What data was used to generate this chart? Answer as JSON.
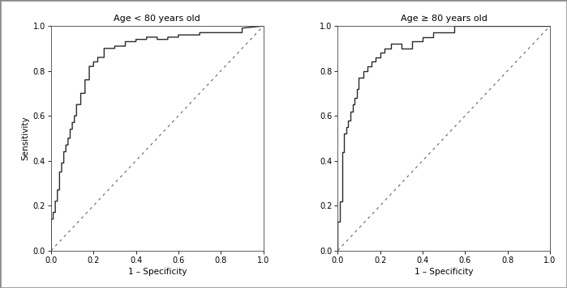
{
  "title1": "Age < 80 years old",
  "title2": "Age ≥ 80 years old",
  "xlabel": "1 – Specificity",
  "ylabel": "Sensitivity",
  "xlim": [
    0.0,
    1.0
  ],
  "ylim": [
    0.0,
    1.0
  ],
  "xticks": [
    0.0,
    0.2,
    0.4,
    0.6,
    0.8,
    1.0
  ],
  "yticks": [
    0.0,
    0.2,
    0.4,
    0.6,
    0.8,
    1.0
  ],
  "line_color": "#2a2a2a",
  "diag_color": "#666666",
  "background_color": "#ffffff",
  "outer_bg": "#ffffff",
  "border_color": "#aaaaaa",
  "roc1_fpr": [
    0.0,
    0.0,
    0.01,
    0.01,
    0.02,
    0.02,
    0.03,
    0.03,
    0.04,
    0.04,
    0.05,
    0.05,
    0.06,
    0.06,
    0.07,
    0.07,
    0.08,
    0.08,
    0.09,
    0.09,
    0.1,
    0.1,
    0.11,
    0.11,
    0.12,
    0.12,
    0.14,
    0.14,
    0.16,
    0.16,
    0.18,
    0.18,
    0.2,
    0.2,
    0.22,
    0.22,
    0.25,
    0.25,
    0.3,
    0.3,
    0.35,
    0.35,
    0.4,
    0.4,
    0.45,
    0.45,
    0.5,
    0.5,
    0.55,
    0.55,
    0.6,
    0.6,
    0.65,
    0.65,
    0.7,
    0.7,
    0.8,
    0.8,
    0.9,
    0.9,
    1.0
  ],
  "roc1_tpr": [
    0.0,
    0.14,
    0.14,
    0.17,
    0.17,
    0.22,
    0.22,
    0.27,
    0.27,
    0.35,
    0.35,
    0.39,
    0.39,
    0.44,
    0.44,
    0.47,
    0.47,
    0.5,
    0.5,
    0.54,
    0.54,
    0.57,
    0.57,
    0.6,
    0.6,
    0.65,
    0.65,
    0.7,
    0.7,
    0.76,
    0.76,
    0.82,
    0.82,
    0.84,
    0.84,
    0.86,
    0.86,
    0.9,
    0.9,
    0.91,
    0.91,
    0.93,
    0.93,
    0.94,
    0.94,
    0.95,
    0.95,
    0.94,
    0.94,
    0.95,
    0.95,
    0.96,
    0.96,
    0.96,
    0.96,
    0.97,
    0.97,
    0.97,
    0.97,
    0.99,
    1.0
  ],
  "roc2_fpr": [
    0.0,
    0.0,
    0.01,
    0.01,
    0.02,
    0.02,
    0.03,
    0.03,
    0.04,
    0.04,
    0.05,
    0.05,
    0.06,
    0.06,
    0.07,
    0.07,
    0.08,
    0.08,
    0.09,
    0.09,
    0.1,
    0.1,
    0.12,
    0.12,
    0.14,
    0.14,
    0.16,
    0.16,
    0.18,
    0.18,
    0.2,
    0.2,
    0.22,
    0.22,
    0.25,
    0.25,
    0.3,
    0.3,
    0.35,
    0.35,
    0.4,
    0.4,
    0.45,
    0.45,
    0.5,
    0.5,
    0.55,
    0.55,
    0.75,
    0.75,
    1.0
  ],
  "roc2_tpr": [
    0.0,
    0.13,
    0.13,
    0.22,
    0.22,
    0.44,
    0.44,
    0.52,
    0.52,
    0.55,
    0.55,
    0.58,
    0.58,
    0.62,
    0.62,
    0.65,
    0.65,
    0.68,
    0.68,
    0.72,
    0.72,
    0.77,
    0.77,
    0.8,
    0.8,
    0.82,
    0.82,
    0.84,
    0.84,
    0.86,
    0.86,
    0.88,
    0.88,
    0.9,
    0.9,
    0.92,
    0.92,
    0.9,
    0.9,
    0.93,
    0.93,
    0.95,
    0.95,
    0.97,
    0.97,
    0.97,
    0.97,
    1.0,
    1.0,
    1.0,
    1.0
  ]
}
